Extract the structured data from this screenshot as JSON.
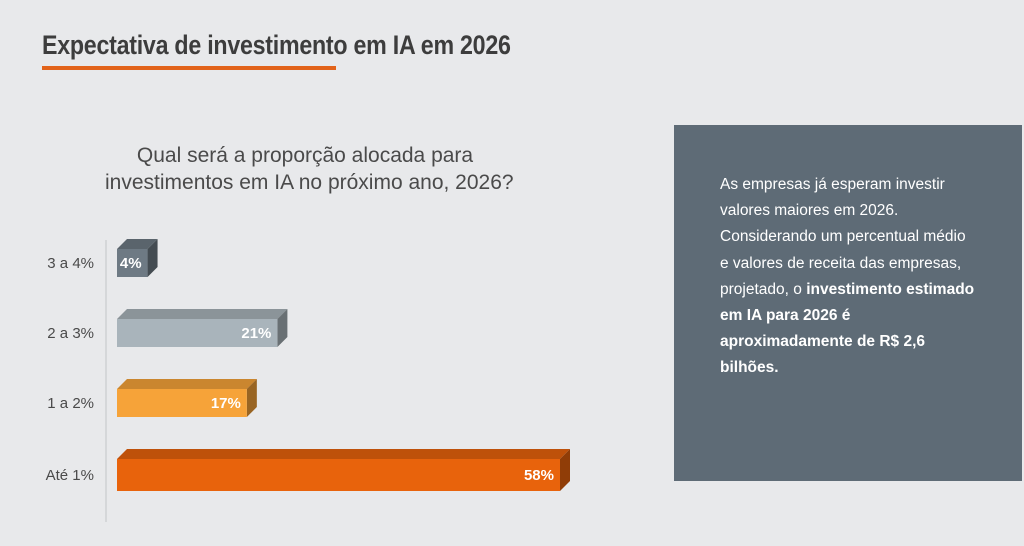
{
  "header": {
    "title": "Expectativa de investimento em IA em 2026"
  },
  "question": {
    "line1": "Qual será a proporção alocada para",
    "line2": "investimentos em IA no próximo ano, 2026?"
  },
  "chart_data": {
    "type": "bar",
    "orientation": "horizontal",
    "categories": [
      "3 a 4%",
      "2 a 3%",
      "1 a 2%",
      "Até 1%"
    ],
    "values": [
      4,
      21,
      17,
      58
    ],
    "value_labels": [
      "4%",
      "21%",
      "17%",
      "58%"
    ],
    "colors": [
      "#6e7a84",
      "#a9b4bb",
      "#f6a339",
      "#e8630c"
    ],
    "xlim": [
      0,
      58
    ],
    "grid": false,
    "legend": "none",
    "style": "3d"
  },
  "info": {
    "text_normal": "As empresas já esperam investir valores maiores em 2026. Considerando um percentual médio e valores de receita das empresas, projetado, o",
    "text_bold": "investimento estimado em IA para 2026 é aproximadamente de R$ 2,6 bilhões."
  },
  "colors": {
    "accent": "#e2631a",
    "panel": "#5e6b76",
    "background": "#e8e9eb"
  }
}
